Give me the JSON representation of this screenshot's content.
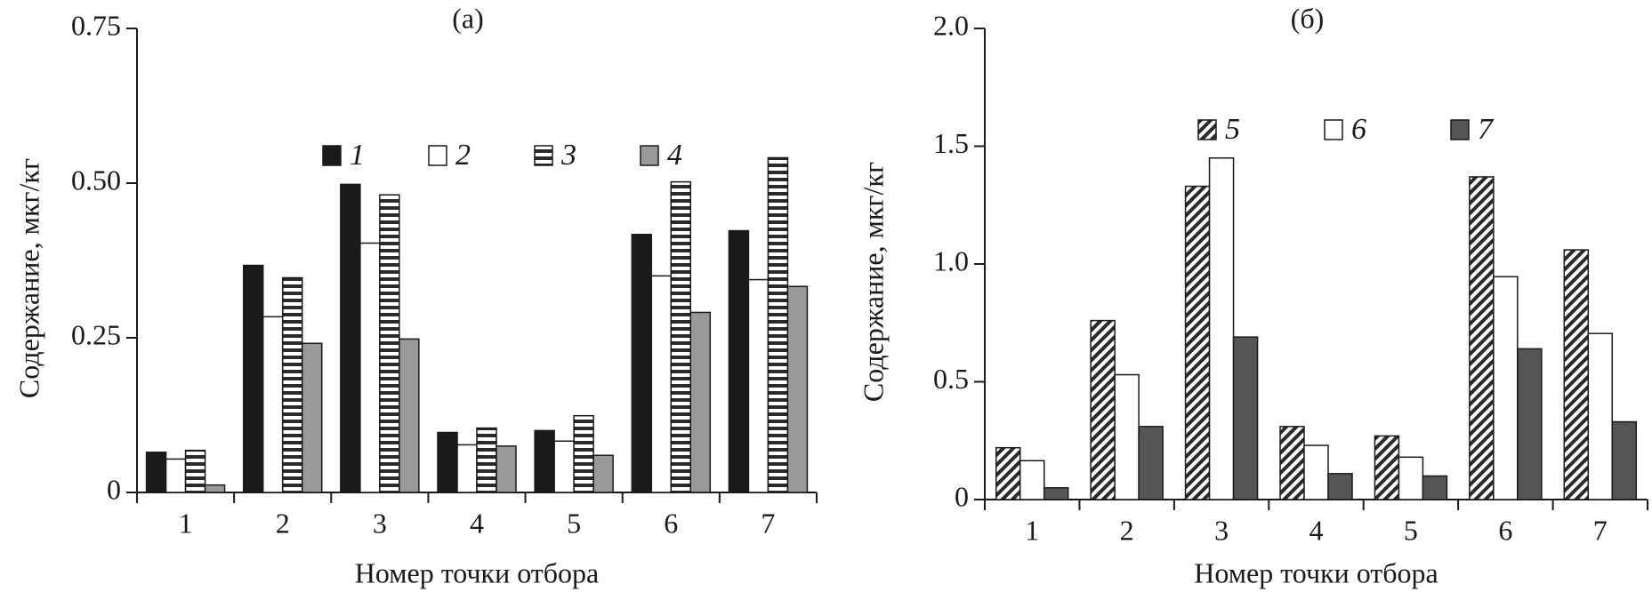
{
  "chart_data": [
    {
      "type": "bar",
      "title": "(а)",
      "xlabel": "Номер точки отбора",
      "ylabel": "Содержание, мкг/кг",
      "categories": [
        "1",
        "2",
        "3",
        "4",
        "5",
        "6",
        "7"
      ],
      "ylim": [
        0,
        0.75
      ],
      "yticks": [
        0,
        0.25,
        {
          "value": 0.5,
          "label": "0.50"
        },
        0.75
      ],
      "series": [
        {
          "name": "1",
          "color": "#1a1a1a",
          "pattern": "solid",
          "values": [
            0.065,
            0.367,
            0.498,
            0.097,
            0.1,
            0.417,
            0.423
          ]
        },
        {
          "name": "2",
          "color": "#ffffff",
          "pattern": "solid",
          "values": [
            0.054,
            0.284,
            0.403,
            0.077,
            0.083,
            0.35,
            0.344
          ]
        },
        {
          "name": "3",
          "color": "#2a2a2a",
          "pattern": "hstripes",
          "values": [
            0.068,
            0.347,
            0.481,
            0.104,
            0.124,
            0.502,
            0.541
          ]
        },
        {
          "name": "4",
          "color": "#999999",
          "pattern": "solid",
          "values": [
            0.012,
            0.241,
            0.248,
            0.075,
            0.06,
            0.291,
            0.333
          ]
        }
      ]
    },
    {
      "type": "bar",
      "title": "(б)",
      "xlabel": "Номер точки отбора",
      "ylabel": "Содержание, мкг/кг",
      "categories": [
        "1",
        "2",
        "3",
        "4",
        "5",
        "6",
        "7"
      ],
      "ylim": [
        0,
        2.0
      ],
      "yticks": [
        0,
        0.5,
        {
          "value": 1.0,
          "label": "1.0"
        },
        1.5,
        {
          "value": 2.0,
          "label": "2.0"
        }
      ],
      "series": [
        {
          "name": "5",
          "color": "#2a2a2a",
          "pattern": "diagonal",
          "values": [
            0.22,
            0.76,
            1.33,
            0.31,
            0.27,
            1.37,
            1.06
          ]
        },
        {
          "name": "6",
          "color": "#ffffff",
          "pattern": "solid",
          "values": [
            0.165,
            0.53,
            1.45,
            0.23,
            0.18,
            0.946,
            0.705
          ]
        },
        {
          "name": "7",
          "color": "#555555",
          "pattern": "solid",
          "values": [
            0.05,
            0.31,
            0.69,
            0.11,
            0.1,
            0.64,
            0.33
          ]
        }
      ]
    }
  ]
}
